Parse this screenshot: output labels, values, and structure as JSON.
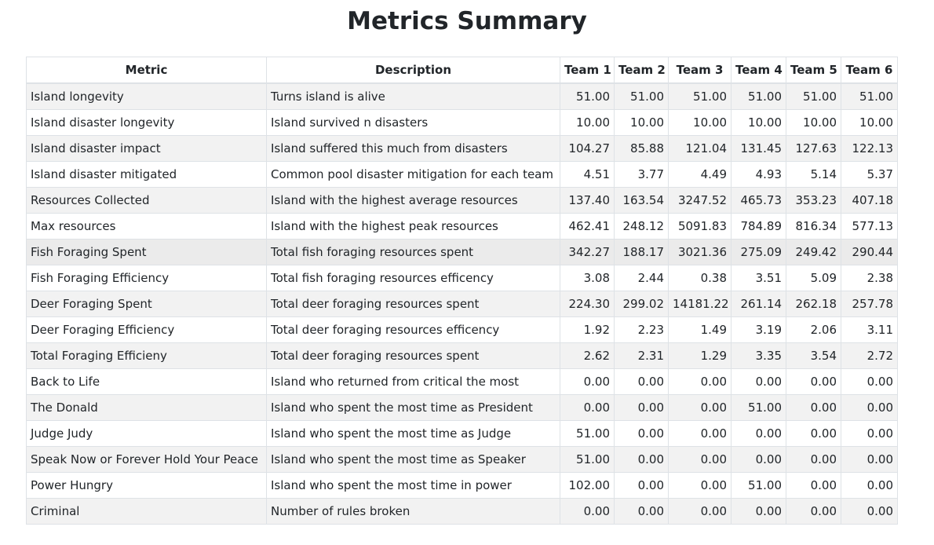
{
  "page": {
    "title": "Metrics Summary"
  },
  "table": {
    "headers": [
      "Metric",
      "Description",
      "Team 1",
      "Team 2",
      "Team 3",
      "Team 4",
      "Team 5",
      "Team 6"
    ],
    "rows": [
      {
        "metric": "Island longevity",
        "description": "Turns island is alive",
        "values": [
          "51.00",
          "51.00",
          "51.00",
          "51.00",
          "51.00",
          "51.00"
        ]
      },
      {
        "metric": "Island disaster longevity",
        "description": "Island survived n disasters",
        "values": [
          "10.00",
          "10.00",
          "10.00",
          "10.00",
          "10.00",
          "10.00"
        ]
      },
      {
        "metric": "Island disaster impact",
        "description": "Island suffered this much from disasters",
        "values": [
          "104.27",
          "85.88",
          "121.04",
          "131.45",
          "127.63",
          "122.13"
        ]
      },
      {
        "metric": "Island disaster mitigated",
        "description": "Common pool disaster mitigation for each team",
        "values": [
          "4.51",
          "3.77",
          "4.49",
          "4.93",
          "5.14",
          "5.37"
        ]
      },
      {
        "metric": "Resources Collected",
        "description": "Island with the highest average resources",
        "values": [
          "137.40",
          "163.54",
          "3247.52",
          "465.73",
          "353.23",
          "407.18"
        ]
      },
      {
        "metric": "Max resources",
        "description": "Island with the highest peak resources",
        "values": [
          "462.41",
          "248.12",
          "5091.83",
          "784.89",
          "816.34",
          "577.13"
        ]
      },
      {
        "metric": "Fish Foraging Spent",
        "description": "Total fish foraging resources spent",
        "values": [
          "342.27",
          "188.17",
          "3021.36",
          "275.09",
          "249.42",
          "290.44"
        ]
      },
      {
        "metric": "Fish Foraging Efficiency",
        "description": "Total fish foraging resources efficency",
        "values": [
          "3.08",
          "2.44",
          "0.38",
          "3.51",
          "5.09",
          "2.38"
        ]
      },
      {
        "metric": "Deer Foraging Spent",
        "description": "Total deer foraging resources spent",
        "values": [
          "224.30",
          "299.02",
          "14181.22",
          "261.14",
          "262.18",
          "257.78"
        ]
      },
      {
        "metric": "Deer Foraging Efficiency",
        "description": "Total deer foraging resources efficency",
        "values": [
          "1.92",
          "2.23",
          "1.49",
          "3.19",
          "2.06",
          "3.11"
        ]
      },
      {
        "metric": "Total Foraging Efficieny",
        "description": "Total deer foraging resources spent",
        "values": [
          "2.62",
          "2.31",
          "1.29",
          "3.35",
          "3.54",
          "2.72"
        ]
      },
      {
        "metric": "Back to Life",
        "description": "Island who returned from critical the most",
        "values": [
          "0.00",
          "0.00",
          "0.00",
          "0.00",
          "0.00",
          "0.00"
        ]
      },
      {
        "metric": "The Donald",
        "description": "Island who spent the most time as President",
        "values": [
          "0.00",
          "0.00",
          "0.00",
          "51.00",
          "0.00",
          "0.00"
        ]
      },
      {
        "metric": "Judge Judy",
        "description": "Island who spent the most time as Judge",
        "values": [
          "51.00",
          "0.00",
          "0.00",
          "0.00",
          "0.00",
          "0.00"
        ]
      },
      {
        "metric": "Speak Now or Forever Hold Your Peace",
        "description": "Island who spent the most time as Speaker",
        "values": [
          "51.00",
          "0.00",
          "0.00",
          "0.00",
          "0.00",
          "0.00"
        ]
      },
      {
        "metric": "Power Hungry",
        "description": "Island who spent the most time in power",
        "values": [
          "102.00",
          "0.00",
          "0.00",
          "51.00",
          "0.00",
          "0.00"
        ]
      },
      {
        "metric": "Criminal",
        "description": "Number of rules broken",
        "values": [
          "0.00",
          "0.00",
          "0.00",
          "0.00",
          "0.00",
          "0.00"
        ]
      }
    ]
  }
}
